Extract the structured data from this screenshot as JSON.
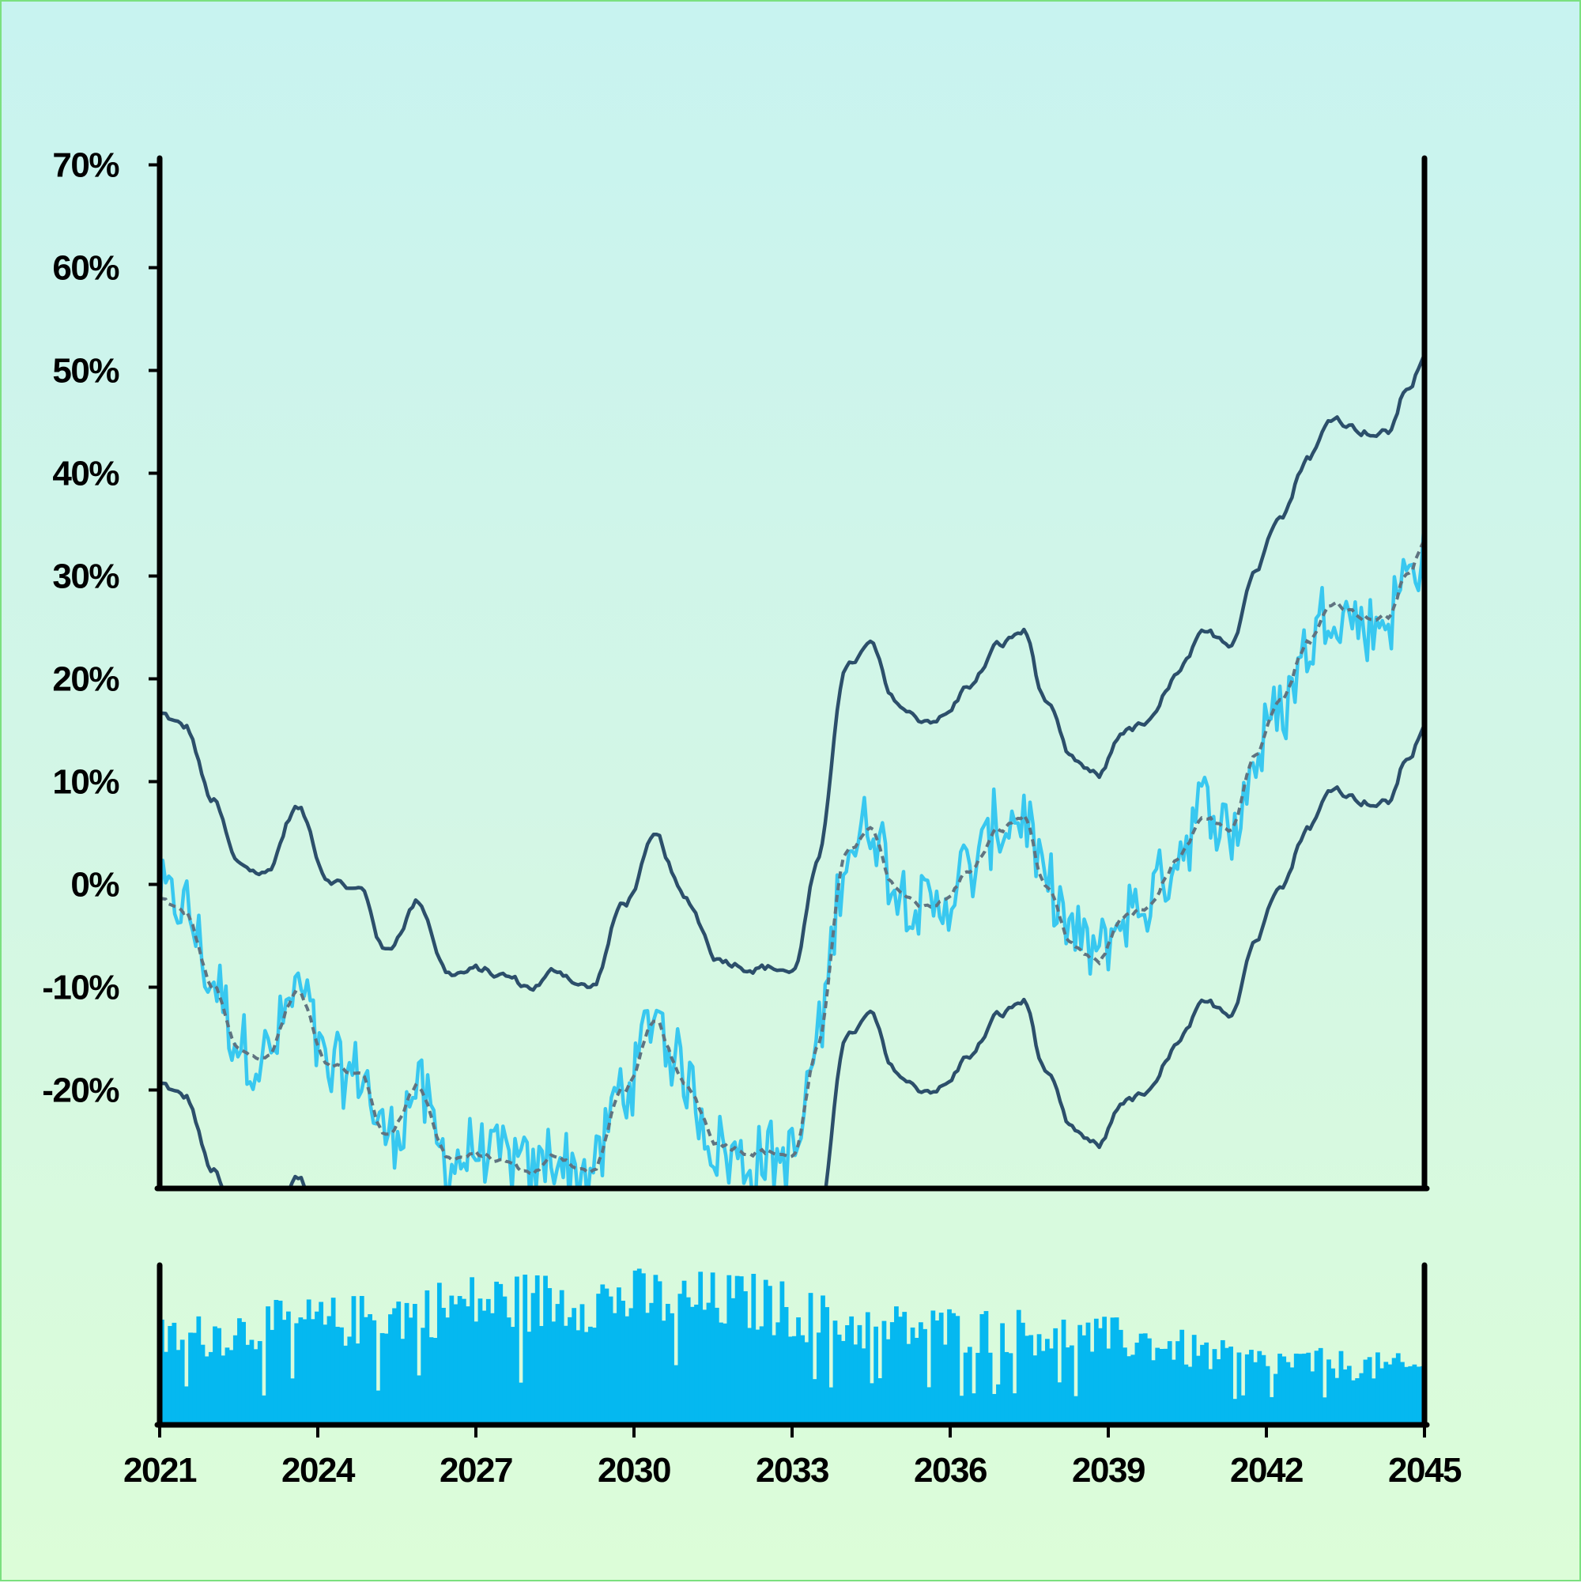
{
  "chart_data": {
    "type": "line",
    "title": "",
    "xlabel": "",
    "ylabel": "",
    "x_ticks": [
      "2021",
      "2024",
      "2027",
      "2030",
      "2033",
      "2036",
      "2039",
      "2042",
      "2045"
    ],
    "y_ticks": [
      "70%",
      "60%",
      "50%",
      "40%",
      "30%",
      "20%",
      "10%",
      "0%",
      "-10%",
      "-20%"
    ],
    "xlim": [
      2021,
      2045
    ],
    "ylim": [
      -29.5,
      70.5
    ],
    "grid": false,
    "legend": "none",
    "colors": {
      "price": "#38c8f0",
      "moving_average": "#5f7380",
      "bands": "#2c4f6b",
      "volume": "#05b8f0"
    },
    "line_styles": {
      "moving_average": "dashed"
    },
    "anchors": {
      "x": [
        2021.0,
        2021.5,
        2022.0,
        2022.5,
        2023.0,
        2023.6,
        2024.2,
        2024.8,
        2025.3,
        2025.9,
        2026.5,
        2027.1,
        2027.5,
        2028.0,
        2028.6,
        2029.2,
        2029.8,
        2030.4,
        2031.0,
        2031.6,
        2032.2,
        2032.8,
        2033.0,
        2033.5,
        2034.0,
        2034.5,
        2034.9,
        2035.4,
        2035.9,
        2036.4,
        2036.9,
        2037.4,
        2037.8,
        2038.3,
        2038.8,
        2039.3,
        2039.8,
        2040.3,
        2040.8,
        2041.3,
        2041.8,
        2042.3,
        2042.8,
        2043.3,
        2043.8,
        2044.3,
        2044.7,
        2045.0
      ],
      "ma": [
        -1.5,
        -3.0,
        -10.0,
        -16.5,
        -17.0,
        -10.5,
        -17.0,
        -18.5,
        -24.5,
        -19.5,
        -26.5,
        -26.5,
        -27.0,
        -28.0,
        -26.5,
        -28.0,
        -20.0,
        -14.0,
        -20.0,
        -25.0,
        -25.5,
        -26.0,
        -26.5,
        -16.0,
        3.0,
        5.0,
        -0.5,
        -2.0,
        -1.5,
        1.5,
        5.0,
        6.5,
        0.0,
        -6.5,
        -8.0,
        -3.0,
        -2.5,
        2.0,
        5.5,
        5.5,
        13.0,
        19.0,
        24.0,
        27.5,
        26.5,
        26.0,
        30.5,
        33.5
      ],
      "half_width": [
        18.0,
        18.0,
        18.0,
        18.0,
        18.0,
        18.0,
        18.0,
        18.0,
        18.0,
        18.0,
        18.0,
        18.0,
        18.0,
        18.0,
        18.0,
        18.0,
        18.0,
        18.0,
        18.0,
        18.0,
        18.0,
        18.0,
        18.0,
        18.0,
        18.0,
        18.0,
        18.0,
        18.0,
        18.0,
        18.0,
        18.0,
        18.0,
        18.0,
        18.0,
        18.0,
        18.0,
        18.0,
        18.0,
        18.0,
        18.0,
        18.0,
        18.0,
        18.0,
        18.0,
        18.0,
        18.0,
        18.0,
        18.0
      ]
    },
    "volume_level": {
      "x": [
        2021.0,
        2024.0,
        2027.5,
        2030.0,
        2032.0,
        2034.5,
        2037.0,
        2039.0,
        2042.0,
        2045.0
      ],
      "level": [
        0.55,
        0.65,
        0.78,
        0.8,
        0.78,
        0.62,
        0.6,
        0.55,
        0.4,
        0.36
      ]
    }
  }
}
